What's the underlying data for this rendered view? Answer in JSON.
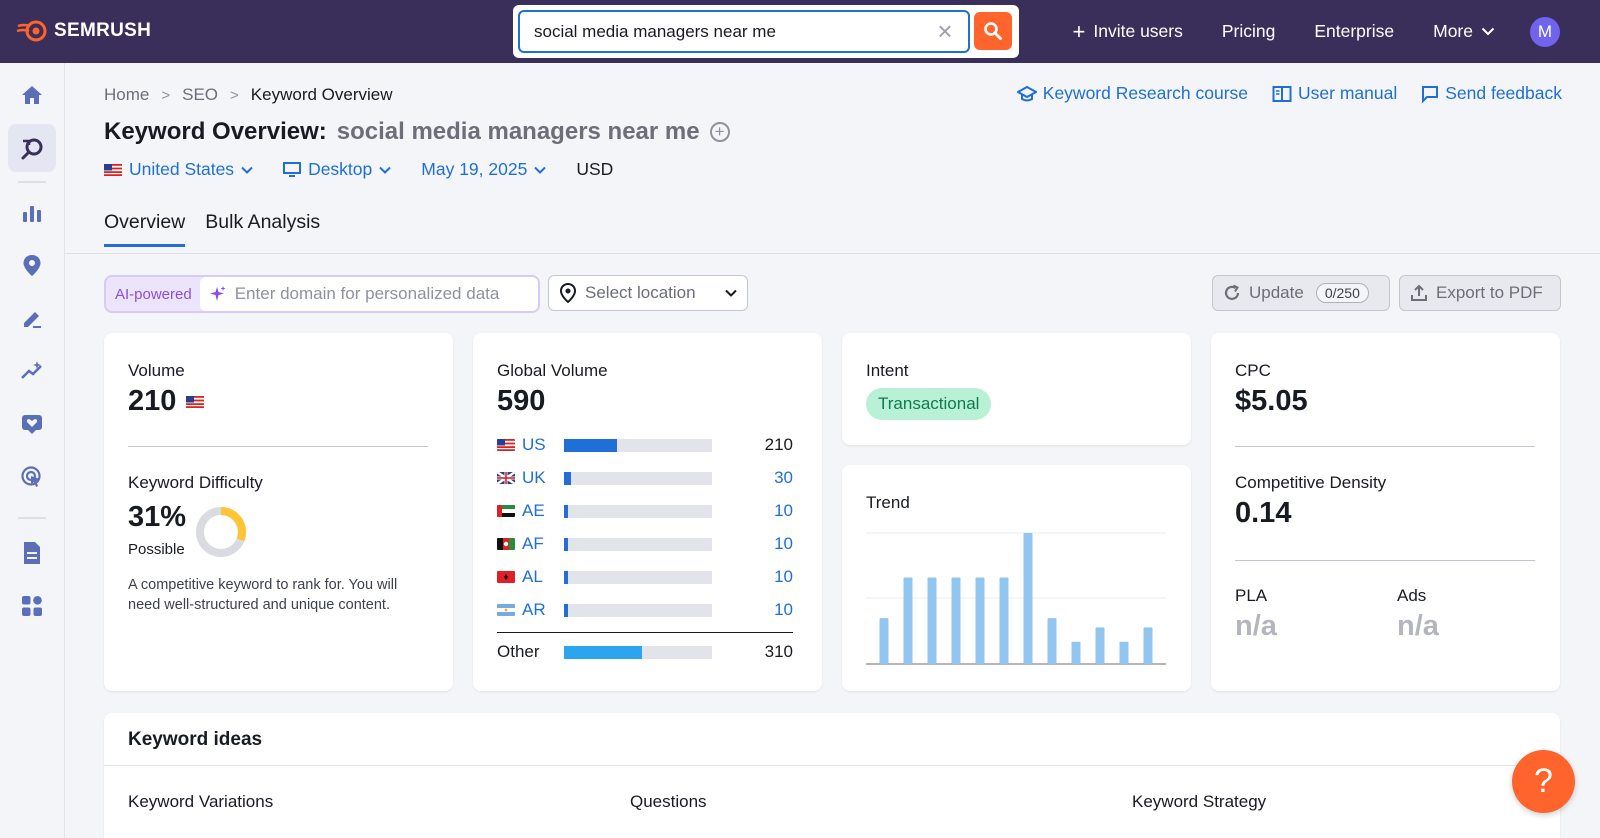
{
  "app": {
    "logo_text": "SEMRUSH"
  },
  "search": {
    "value": "social media managers near me"
  },
  "topnav": {
    "invite": "Invite users",
    "pricing": "Pricing",
    "enterprise": "Enterprise",
    "more": "More",
    "avatar_letter": "M"
  },
  "breadcrumb": {
    "home": "Home",
    "seo": "SEO",
    "current": "Keyword Overview"
  },
  "help_links": {
    "course": "Keyword Research course",
    "manual": "User manual",
    "feedback": "Send feedback"
  },
  "title": {
    "label": "Keyword Overview:",
    "keyword": "social media managers near me"
  },
  "filters": {
    "country": "United States",
    "device": "Desktop",
    "date": "May 19, 2025",
    "currency": "USD"
  },
  "tabs": [
    "Overview",
    "Bulk Analysis"
  ],
  "ai": {
    "label": "AI-powered",
    "placeholder": "Enter domain for personalized data"
  },
  "location": {
    "placeholder": "Select location"
  },
  "update": {
    "label": "Update",
    "count": "0/250"
  },
  "export": {
    "label": "Export to PDF"
  },
  "volume": {
    "label": "Volume",
    "value": "210"
  },
  "kd": {
    "label": "Keyword Difficulty",
    "value": "31%",
    "level": "Possible",
    "percent": 31,
    "description": "A competitive keyword to rank for. You will need well-structured and unique content."
  },
  "global": {
    "label": "Global Volume",
    "value": "590",
    "rows": [
      {
        "code": "US",
        "value": "210",
        "fraction": 0.356
      },
      {
        "code": "UK",
        "value": "30",
        "fraction": 0.05
      },
      {
        "code": "AE",
        "value": "10",
        "fraction": 0.017
      },
      {
        "code": "AF",
        "value": "10",
        "fraction": 0.017
      },
      {
        "code": "AL",
        "value": "10",
        "fraction": 0.017
      },
      {
        "code": "AR",
        "value": "10",
        "fraction": 0.017
      }
    ],
    "other": {
      "label": "Other",
      "value": "310",
      "fraction": 0.525
    }
  },
  "intent": {
    "label": "Intent",
    "value": "Transactional"
  },
  "trend": {
    "label": "Trend"
  },
  "chart_data": {
    "type": "bar",
    "values": [
      0.35,
      0.66,
      0.66,
      0.66,
      0.66,
      0.66,
      1.0,
      0.35,
      0.17,
      0.28,
      0.17,
      0.28
    ],
    "ylim": [
      0,
      1
    ],
    "grid": true
  },
  "cpc": {
    "label": "CPC",
    "value": "$5.05"
  },
  "density": {
    "label": "Competitive Density",
    "value": "0.14"
  },
  "pla": {
    "label": "PLA",
    "value": "n/a"
  },
  "ads": {
    "label": "Ads",
    "value": "n/a"
  },
  "ideas": {
    "title": "Keyword ideas",
    "variations": "Keyword Variations",
    "questions": "Questions",
    "strategy": "Keyword Strategy"
  },
  "fab": {
    "label": "?"
  },
  "colors": {
    "topbar": "#3a2f5b",
    "accent": "#1f6fd6",
    "orange": "#ff642d",
    "trend_bar": "#92c5f0"
  }
}
